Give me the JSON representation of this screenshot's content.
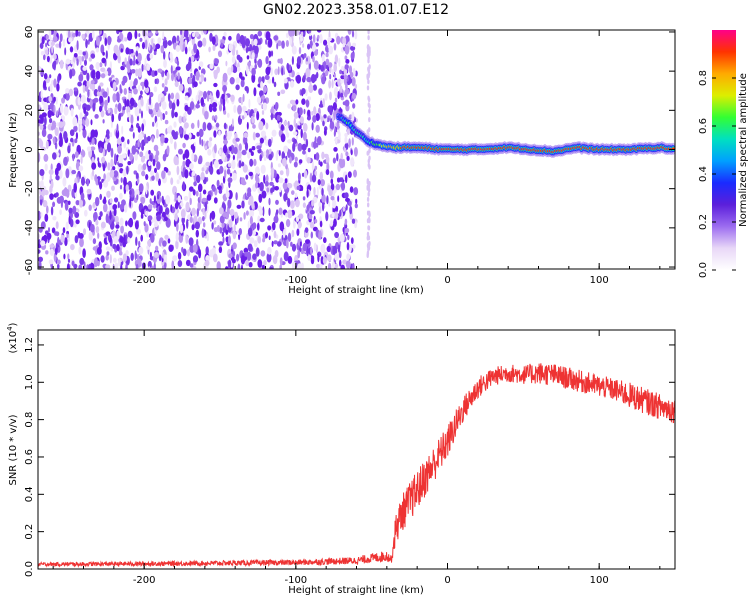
{
  "title": "GN02.2023.358.01.07.E12",
  "colors": {
    "snr_line": "#ee3333",
    "speckle": "#6a1ee8",
    "frame": "#000000"
  },
  "colorbar": {
    "label": "Normalized spectral amplitude",
    "ticks": [
      "0.0",
      "0.2",
      "0.4",
      "0.6",
      "0.8"
    ],
    "range": [
      0,
      1
    ],
    "colormap": [
      "#ffffff",
      "#e8d7f7",
      "#9c6cf0",
      "#5b1fdb",
      "#1a2bff",
      "#00a0ff",
      "#00e0c0",
      "#33ff33",
      "#ddee00",
      "#ffaa00",
      "#ff3300",
      "#ff0088"
    ]
  },
  "chart_data": [
    {
      "type": "heatmap",
      "title": "GN02.2023.358.01.07.E12",
      "xlabel": "Height of straight line (km)",
      "ylabel": "Frequency (Hz)",
      "xlim": [
        -270,
        150
      ],
      "ylim": [
        -61,
        61
      ],
      "xticks": [
        "-200",
        "-100",
        "0",
        "100"
      ],
      "yticks": [
        "60",
        "40",
        "20",
        "0",
        "-20",
        "-40",
        "-60"
      ],
      "noise_region_x": [
        -270,
        -60
      ],
      "sparse_column_x": -52,
      "signal_track": [
        {
          "x": -72,
          "y": 17,
          "amp": 0.35
        },
        {
          "x": -66,
          "y": 14,
          "amp": 0.6
        },
        {
          "x": -60,
          "y": 9,
          "amp": 0.5
        },
        {
          "x": -52,
          "y": 4,
          "amp": 0.55
        },
        {
          "x": -44,
          "y": 2,
          "amp": 0.7
        },
        {
          "x": -35,
          "y": 1,
          "amp": 0.85
        },
        {
          "x": -20,
          "y": 1,
          "amp": 0.9
        },
        {
          "x": 0,
          "y": 0,
          "amp": 0.95
        },
        {
          "x": 20,
          "y": 0,
          "amp": 0.95
        },
        {
          "x": 40,
          "y": 1,
          "amp": 0.9
        },
        {
          "x": 55,
          "y": 0,
          "amp": 0.95
        },
        {
          "x": 70,
          "y": -1,
          "amp": 0.9
        },
        {
          "x": 85,
          "y": 1,
          "amp": 0.92
        },
        {
          "x": 100,
          "y": 0,
          "amp": 0.95
        },
        {
          "x": 120,
          "y": 0,
          "amp": 0.9
        },
        {
          "x": 140,
          "y": 1,
          "amp": 0.92
        },
        {
          "x": 150,
          "y": 0,
          "amp": 0.9
        }
      ]
    },
    {
      "type": "line",
      "xlabel": "Height of straight line (km)",
      "ylabel": "SNR (10 * v/v)",
      "y_scale_note": "(x10",
      "y_scale_exponent": "4",
      "xlim": [
        -270,
        150
      ],
      "ylim": [
        0,
        1.28
      ],
      "xticks": [
        "-200",
        "-100",
        "0",
        "100"
      ],
      "yticks": [
        "0.0",
        "0.2",
        "0.4",
        "0.6",
        "0.8",
        "1.0",
        "1.2"
      ],
      "series": [
        {
          "envelope_x": [
            -270,
            -200,
            -100,
            -60,
            -40,
            -37,
            -34,
            -30,
            -20,
            -10,
            0,
            10,
            20,
            30,
            40,
            50,
            60,
            70,
            80,
            90,
            100,
            110,
            120,
            130,
            140,
            150
          ],
          "envelope_y": [
            0.025,
            0.028,
            0.035,
            0.045,
            0.07,
            0.05,
            0.22,
            0.3,
            0.42,
            0.55,
            0.68,
            0.85,
            0.97,
            1.03,
            1.05,
            1.04,
            1.05,
            1.04,
            1.02,
            1.0,
            0.98,
            0.96,
            0.93,
            0.9,
            0.87,
            0.85
          ],
          "noise_amplitude": [
            0.01,
            0.012,
            0.015,
            0.02,
            0.03,
            0.02,
            0.09,
            0.1,
            0.11,
            0.1,
            0.09,
            0.07,
            0.06,
            0.05,
            0.05,
            0.05,
            0.06,
            0.06,
            0.06,
            0.06,
            0.06,
            0.06,
            0.07,
            0.07,
            0.07,
            0.07
          ]
        }
      ]
    }
  ]
}
